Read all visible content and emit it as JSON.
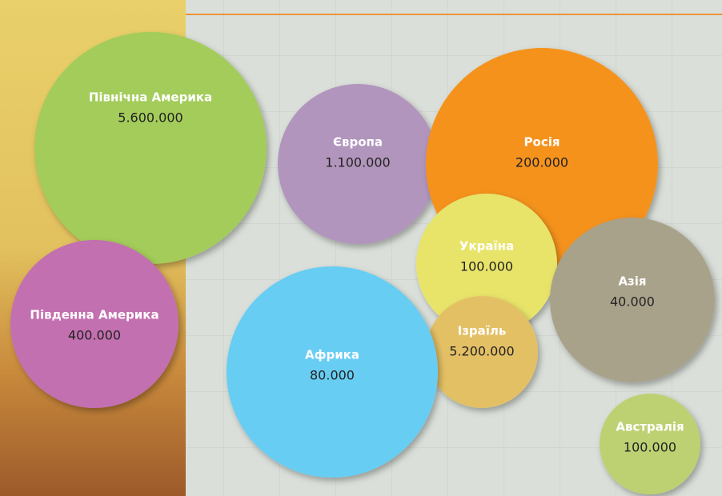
{
  "nodes": [
    {
      "label": "Північна Америка",
      "value": "5.600.000"
    },
    {
      "label": "Європа",
      "value": "1.100.000"
    },
    {
      "label": "Росія",
      "value": "200.000"
    },
    {
      "label": "Україна",
      "value": "100.000"
    },
    {
      "label": "Азія",
      "value": "40.000"
    },
    {
      "label": "Ізраїль",
      "value": "5.200.000"
    },
    {
      "label": "Південна Америка",
      "value": "400.000"
    },
    {
      "label": "Африка",
      "value": "80.000"
    },
    {
      "label": "Австралія",
      "value": "100.000"
    }
  ]
}
